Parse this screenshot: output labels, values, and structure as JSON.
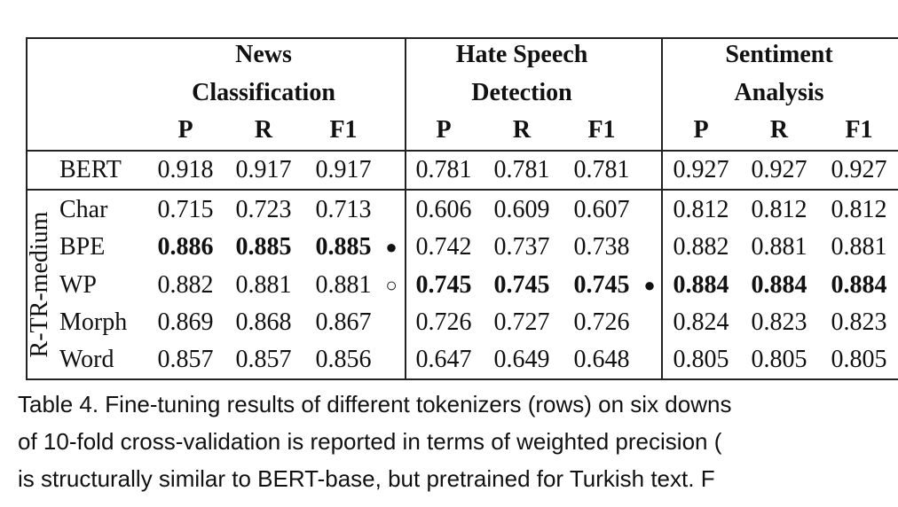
{
  "table": {
    "groups": [
      {
        "title": [
          "News",
          "Classification"
        ],
        "metrics": [
          "P",
          "R",
          "F1"
        ]
      },
      {
        "title": [
          "Hate Speech",
          "Detection"
        ],
        "metrics": [
          "P",
          "R",
          "F1"
        ]
      },
      {
        "title": [
          "Sentiment",
          "Analysis"
        ],
        "metrics": [
          "P",
          "R",
          "F1"
        ]
      }
    ],
    "baseline": {
      "label": "BERT",
      "cells": [
        {
          "text": "0.918"
        },
        {
          "text": "0.917"
        },
        {
          "text": "0.917"
        },
        {
          "text": "0.781"
        },
        {
          "text": "0.781"
        },
        {
          "text": "0.781"
        },
        {
          "text": "0.927"
        },
        {
          "text": "0.927"
        },
        {
          "text": "0.927"
        }
      ]
    },
    "row_group": {
      "label": "R-TR-medium",
      "rows": [
        {
          "label": "Char",
          "cells": [
            {
              "text": "0.715"
            },
            {
              "text": "0.723"
            },
            {
              "text": "0.713"
            },
            {
              "text": "0.606"
            },
            {
              "text": "0.609"
            },
            {
              "text": "0.607"
            },
            {
              "text": "0.812"
            },
            {
              "text": "0.812"
            },
            {
              "text": "0.812"
            }
          ]
        },
        {
          "label": "BPE",
          "cells": [
            {
              "text": "0.886",
              "bold": true
            },
            {
              "text": "0.885",
              "bold": true
            },
            {
              "text": "0.885",
              "bold": true,
              "marker": "●"
            },
            {
              "text": "0.742"
            },
            {
              "text": "0.737"
            },
            {
              "text": "0.738"
            },
            {
              "text": "0.882"
            },
            {
              "text": "0.881"
            },
            {
              "text": "0.881"
            }
          ]
        },
        {
          "label": "WP",
          "cells": [
            {
              "text": "0.882"
            },
            {
              "text": "0.881"
            },
            {
              "text": "0.881",
              "marker": "○"
            },
            {
              "text": "0.745",
              "bold": true
            },
            {
              "text": "0.745",
              "bold": true
            },
            {
              "text": "0.745",
              "bold": true,
              "marker": "●"
            },
            {
              "text": "0.884",
              "bold": true
            },
            {
              "text": "0.884",
              "bold": true
            },
            {
              "text": "0.884",
              "bold": true
            }
          ]
        },
        {
          "label": "Morph",
          "cells": [
            {
              "text": "0.869"
            },
            {
              "text": "0.868"
            },
            {
              "text": "0.867"
            },
            {
              "text": "0.726"
            },
            {
              "text": "0.727"
            },
            {
              "text": "0.726"
            },
            {
              "text": "0.824"
            },
            {
              "text": "0.823"
            },
            {
              "text": "0.823"
            }
          ]
        },
        {
          "label": "Word",
          "cells": [
            {
              "text": "0.857"
            },
            {
              "text": "0.857"
            },
            {
              "text": "0.856"
            },
            {
              "text": "0.647"
            },
            {
              "text": "0.649"
            },
            {
              "text": "0.648"
            },
            {
              "text": "0.805"
            },
            {
              "text": "0.805"
            },
            {
              "text": "0.805"
            }
          ]
        }
      ]
    }
  },
  "caption": {
    "lines": [
      "Table 4.  Fine-tuning results of different tokenizers (rows) on six downs",
      "of 10-fold cross-validation is reported in terms of weighted precision (",
      "is structurally similar to BERT-base, but pretrained for Turkish text. F"
    ]
  }
}
